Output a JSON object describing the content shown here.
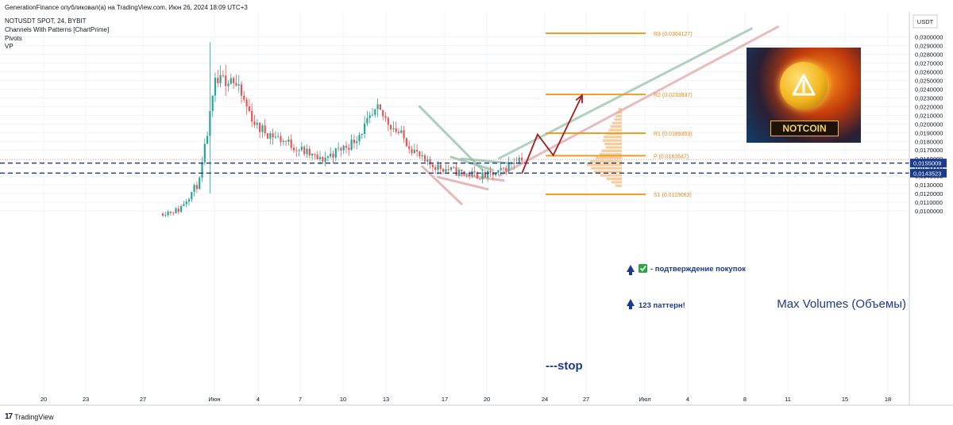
{
  "header": {
    "publisher": "GenerationFinance опубликовал(а) на TradingView.com, Июн 26, 2024 18:09 UTC+3",
    "symbol": "NOTUSDT SPOT, 24, BYBIT",
    "indicators": [
      "Channels With Patterns [ChartPrime]",
      "Pivots",
      "VP"
    ]
  },
  "currency_label": "USDT",
  "footer_label": "TradingView",
  "logo_text": "NOTCOIN",
  "annotations": {
    "confirm": "- подтверждение покупок",
    "pattern": "123 паттерн!",
    "max_volumes": "Max Volumes (Объемы)",
    "stop": "---stop"
  },
  "colors": {
    "up_candle": "#26a69a",
    "down_candle": "#ef5350",
    "pivot_line": "#f59a23",
    "level_dash": "#1a3a8c",
    "arrow": "#a61c1c",
    "channel_green": "#8fbfa1",
    "channel_red": "#e0a0a0",
    "volume_profile": "#f7c48a"
  },
  "chart_data": {
    "type": "candlestick",
    "timeframe": "24",
    "x_ticks": [
      "20",
      "23",
      "27",
      "Июн",
      "4",
      "7",
      "10",
      "13",
      "17",
      "20",
      "24",
      "27",
      "Июл",
      "4",
      "8",
      "11",
      "15",
      "18"
    ],
    "y_ticks": [
      "0,0300000",
      "0,0290000",
      "0,0280000",
      "0,0270000",
      "0,0260000",
      "0,0250000",
      "0,0240000",
      "0,0230000",
      "0,0220000",
      "0,0210000",
      "0,0200000",
      "0,0190000",
      "0,0180000",
      "0,0170000",
      "0,0160000",
      "0,0150000",
      "0,0140000",
      "0,0130000",
      "0,0120000",
      "0,0110000",
      "0,0100000"
    ],
    "ylim": [
      0.0096,
      0.031
    ],
    "pivots": [
      {
        "label": "R3 (0.0304127)",
        "value": 0.0304127
      },
      {
        "label": "R2 (0.0233837)",
        "value": 0.0233837
      },
      {
        "label": "R1 (0.0189353)",
        "value": 0.0189353
      },
      {
        "label": "P (0.0163547)",
        "value": 0.0163547
      },
      {
        "label": "S1 (0.0119063)",
        "value": 0.0119063
      }
    ],
    "levels": [
      {
        "label": "0,0155009",
        "value": 0.0155009
      },
      {
        "label": "0,0143523",
        "value": 0.0143523
      }
    ],
    "last_price": 0.0159,
    "anchors": [
      {
        "t": 0,
        "v": 0.0098
      },
      {
        "t": 6,
        "v": 0.0101
      },
      {
        "t": 14,
        "v": 0.0134
      },
      {
        "t": 20,
        "v": 0.0245
      },
      {
        "t": 26,
        "v": 0.0255
      },
      {
        "t": 36,
        "v": 0.0196
      },
      {
        "t": 48,
        "v": 0.0178
      },
      {
        "t": 60,
        "v": 0.0158
      },
      {
        "t": 72,
        "v": 0.0178
      },
      {
        "t": 82,
        "v": 0.0215
      },
      {
        "t": 90,
        "v": 0.019
      },
      {
        "t": 100,
        "v": 0.0155
      },
      {
        "t": 112,
        "v": 0.0145
      },
      {
        "t": 122,
        "v": 0.014
      },
      {
        "t": 128,
        "v": 0.0143
      },
      {
        "t": 134,
        "v": 0.0158
      },
      {
        "t": 137,
        "v": 0.0162
      }
    ],
    "spikes": [
      {
        "t": 18,
        "high": 0.0294,
        "low": 0.012
      },
      {
        "t": 24,
        "high": 0.0268,
        "low": 0.0232
      }
    ],
    "volume_profile": [
      {
        "price": 0.0217,
        "vol": 0.1
      },
      {
        "price": 0.0213,
        "vol": 0.14
      },
      {
        "price": 0.0209,
        "vol": 0.18
      },
      {
        "price": 0.0205,
        "vol": 0.22
      },
      {
        "price": 0.0201,
        "vol": 0.28
      },
      {
        "price": 0.0197,
        "vol": 0.33
      },
      {
        "price": 0.0193,
        "vol": 0.38
      },
      {
        "price": 0.0189,
        "vol": 0.45
      },
      {
        "price": 0.0185,
        "vol": 0.52
      },
      {
        "price": 0.0181,
        "vol": 0.55
      },
      {
        "price": 0.0177,
        "vol": 0.5
      },
      {
        "price": 0.0173,
        "vol": 0.46
      },
      {
        "price": 0.0169,
        "vol": 0.58
      },
      {
        "price": 0.0165,
        "vol": 0.64
      },
      {
        "price": 0.0161,
        "vol": 0.75
      },
      {
        "price": 0.0157,
        "vol": 0.92
      },
      {
        "price": 0.0153,
        "vol": 1.0
      },
      {
        "price": 0.0149,
        "vol": 0.88
      },
      {
        "price": 0.0145,
        "vol": 0.8
      },
      {
        "price": 0.0141,
        "vol": 0.62
      },
      {
        "price": 0.0137,
        "vol": 0.44
      },
      {
        "price": 0.0133,
        "vol": 0.3
      },
      {
        "price": 0.0129,
        "vol": 0.18
      }
    ],
    "projection": [
      {
        "t": 137,
        "v": 0.0143
      },
      {
        "t": 143,
        "v": 0.0188
      },
      {
        "t": 149,
        "v": 0.0164
      },
      {
        "t": 160,
        "v": 0.0233
      }
    ],
    "channels": [
      {
        "color": "green",
        "from": {
          "t": 128,
          "v": 0.016
        },
        "to": {
          "t": 225,
          "v": 0.031
        }
      },
      {
        "color": "red",
        "from": {
          "t": 128,
          "v": 0.014
        },
        "to": {
          "t": 235,
          "v": 0.0312
        }
      }
    ],
    "triangle_lines": [
      {
        "color": "green",
        "from": {
          "t": 98,
          "v": 0.022
        },
        "to": {
          "t": 122,
          "v": 0.0147
        }
      },
      {
        "color": "red",
        "from": {
          "t": 99,
          "v": 0.0151
        },
        "to": {
          "t": 114,
          "v": 0.0108
        }
      },
      {
        "color": "red",
        "from": {
          "t": 105,
          "v": 0.0139
        },
        "to": {
          "t": 124,
          "v": 0.0125
        }
      },
      {
        "color": "red",
        "from": {
          "t": 113,
          "v": 0.0142
        },
        "to": {
          "t": 130,
          "v": 0.0135
        }
      },
      {
        "color": "green",
        "from": {
          "t": 110,
          "v": 0.0162
        },
        "to": {
          "t": 126,
          "v": 0.0147
        }
      },
      {
        "color": "green",
        "from": {
          "t": 114,
          "v": 0.016
        },
        "to": {
          "t": 132,
          "v": 0.0155
        }
      }
    ]
  }
}
